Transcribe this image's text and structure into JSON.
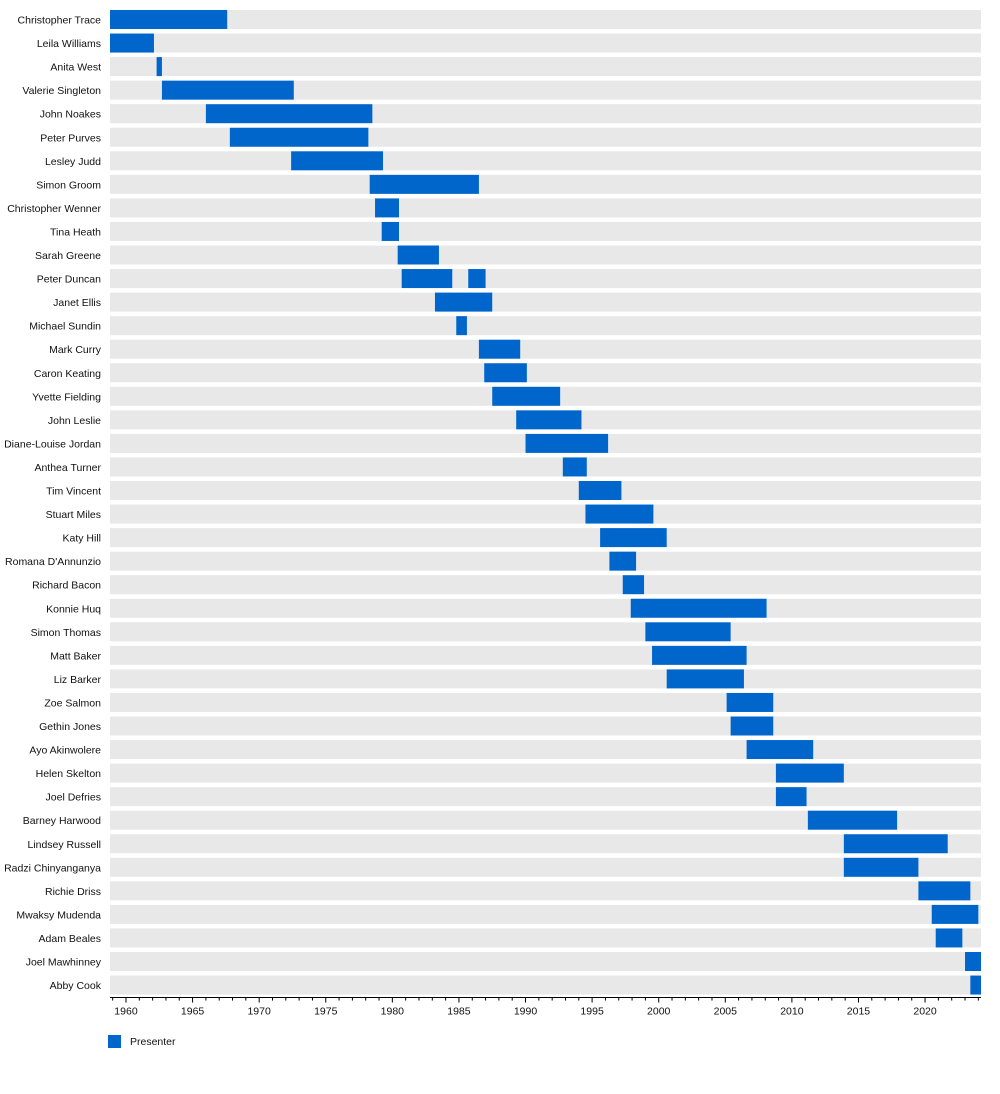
{
  "chart_data": {
    "type": "timeline",
    "title": "",
    "xlabel": "",
    "ylabel": "",
    "xlim": [
      1958.8,
      2024.2
    ],
    "x_ticks": [
      1960,
      1965,
      1970,
      1975,
      1980,
      1985,
      1990,
      1995,
      2000,
      2005,
      2010,
      2015,
      2020
    ],
    "grid": false,
    "legend_position": "bottom-left",
    "colors": {
      "bar": "#0066cc",
      "row_background": "#e8e8e8"
    },
    "series": [
      {
        "name": "Presenter"
      }
    ],
    "rows": [
      {
        "name": "Christopher Trace",
        "periods": [
          [
            1958.8,
            1967.6
          ]
        ]
      },
      {
        "name": "Leila Williams",
        "periods": [
          [
            1958.8,
            1962.1
          ]
        ]
      },
      {
        "name": "Anita West",
        "periods": [
          [
            1962.3,
            1962.7
          ]
        ]
      },
      {
        "name": "Valerie Singleton",
        "periods": [
          [
            1962.7,
            1972.6
          ]
        ]
      },
      {
        "name": "John Noakes",
        "periods": [
          [
            1966.0,
            1978.5
          ]
        ]
      },
      {
        "name": "Peter Purves",
        "periods": [
          [
            1967.8,
            1978.2
          ]
        ]
      },
      {
        "name": "Lesley Judd",
        "periods": [
          [
            1972.4,
            1979.3
          ]
        ]
      },
      {
        "name": "Simon Groom",
        "periods": [
          [
            1978.3,
            1986.5
          ]
        ]
      },
      {
        "name": "Christopher Wenner",
        "periods": [
          [
            1978.7,
            1980.5
          ]
        ]
      },
      {
        "name": "Tina Heath",
        "periods": [
          [
            1979.2,
            1980.5
          ]
        ]
      },
      {
        "name": "Sarah Greene",
        "periods": [
          [
            1980.4,
            1983.5
          ]
        ]
      },
      {
        "name": "Peter Duncan",
        "periods": [
          [
            1980.7,
            1984.5
          ],
          [
            1985.7,
            1987.0
          ]
        ]
      },
      {
        "name": "Janet Ellis",
        "periods": [
          [
            1983.2,
            1987.5
          ]
        ]
      },
      {
        "name": "Michael Sundin",
        "periods": [
          [
            1984.8,
            1985.6
          ]
        ]
      },
      {
        "name": "Mark Curry",
        "periods": [
          [
            1986.5,
            1989.6
          ]
        ]
      },
      {
        "name": "Caron Keating",
        "periods": [
          [
            1986.9,
            1990.1
          ]
        ]
      },
      {
        "name": "Yvette Fielding",
        "periods": [
          [
            1987.5,
            1992.6
          ]
        ]
      },
      {
        "name": "John Leslie",
        "periods": [
          [
            1989.3,
            1994.2
          ]
        ]
      },
      {
        "name": "Diane-Louise Jordan",
        "periods": [
          [
            1990.0,
            1996.2
          ]
        ]
      },
      {
        "name": "Anthea Turner",
        "periods": [
          [
            1992.8,
            1994.6
          ]
        ]
      },
      {
        "name": "Tim Vincent",
        "periods": [
          [
            1994.0,
            1997.2
          ]
        ]
      },
      {
        "name": "Stuart Miles",
        "periods": [
          [
            1994.5,
            1999.6
          ]
        ]
      },
      {
        "name": "Katy Hill",
        "periods": [
          [
            1995.6,
            2000.6
          ]
        ]
      },
      {
        "name": "Romana D'Annunzio",
        "periods": [
          [
            1996.3,
            1998.3
          ]
        ]
      },
      {
        "name": "Richard Bacon",
        "periods": [
          [
            1997.3,
            1998.9
          ]
        ]
      },
      {
        "name": "Konnie Huq",
        "periods": [
          [
            1997.9,
            2008.1
          ]
        ]
      },
      {
        "name": "Simon Thomas",
        "periods": [
          [
            1999.0,
            2005.4
          ]
        ]
      },
      {
        "name": "Matt Baker",
        "periods": [
          [
            1999.5,
            2006.6
          ]
        ]
      },
      {
        "name": "Liz Barker",
        "periods": [
          [
            2000.6,
            2006.4
          ]
        ]
      },
      {
        "name": "Zoe Salmon",
        "periods": [
          [
            2005.1,
            2008.6
          ]
        ]
      },
      {
        "name": "Gethin Jones",
        "periods": [
          [
            2005.4,
            2008.6
          ]
        ]
      },
      {
        "name": "Ayo Akinwolere",
        "periods": [
          [
            2006.6,
            2011.6
          ]
        ]
      },
      {
        "name": "Helen Skelton",
        "periods": [
          [
            2008.8,
            2013.9
          ]
        ]
      },
      {
        "name": "Joel Defries",
        "periods": [
          [
            2008.8,
            2011.1
          ]
        ]
      },
      {
        "name": "Barney Harwood",
        "periods": [
          [
            2011.2,
            2017.9
          ]
        ]
      },
      {
        "name": "Lindsey Russell",
        "periods": [
          [
            2013.9,
            2021.7
          ]
        ]
      },
      {
        "name": "Radzi Chinyanganya",
        "periods": [
          [
            2013.9,
            2019.5
          ]
        ]
      },
      {
        "name": "Richie Driss",
        "periods": [
          [
            2019.5,
            2023.4
          ]
        ]
      },
      {
        "name": "Mwaksy Mudenda",
        "periods": [
          [
            2020.5,
            2024.0
          ]
        ]
      },
      {
        "name": "Adam Beales",
        "periods": [
          [
            2020.8,
            2022.8
          ]
        ]
      },
      {
        "name": "Joel Mawhinney",
        "periods": [
          [
            2023.0,
            2024.2
          ]
        ]
      },
      {
        "name": "Abby Cook",
        "periods": [
          [
            2023.4,
            2024.2
          ]
        ]
      }
    ]
  }
}
